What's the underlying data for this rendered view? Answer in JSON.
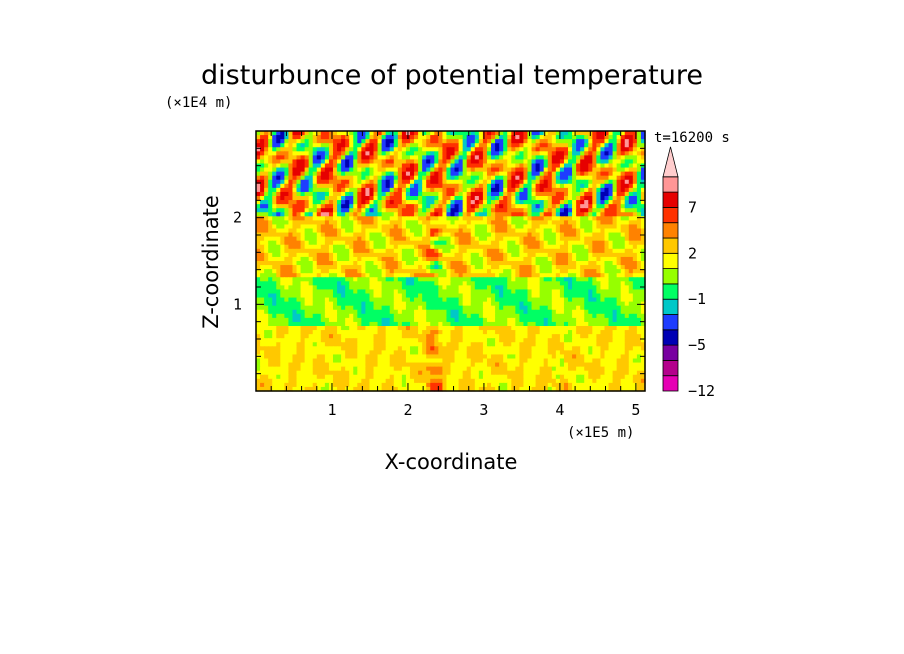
{
  "chart_data": {
    "type": "heatmap",
    "title": "disturbunce of potential temperature",
    "xlabel": "X-coordinate",
    "ylabel": "Z-coordinate",
    "x_scale_label": "(×1E5 m)",
    "y_scale_label": "(×1E4 m)",
    "time_label": "t=16200 s",
    "xlim": [
      0,
      5.12
    ],
    "ylim": [
      0,
      3.0
    ],
    "x_ticks": [
      "1",
      "2",
      "3",
      "4",
      "5"
    ],
    "x_tick_values": [
      1,
      2,
      3,
      4,
      5
    ],
    "y_ticks": [
      "1",
      "2"
    ],
    "y_tick_values": [
      1,
      2
    ],
    "colorbar": {
      "labels": [
        "7",
        "2",
        "−1",
        "−5",
        "−12"
      ],
      "levels": [
        -12,
        -9,
        -7,
        -5,
        -3,
        -2,
        -1,
        0,
        1,
        2,
        3,
        5,
        7,
        9
      ],
      "colors": [
        "#e600b4",
        "#b4008c",
        "#7800a0",
        "#0000b4",
        "#1e3cff",
        "#00c8c8",
        "#00ff64",
        "#96ff00",
        "#ffff00",
        "#ffc800",
        "#ff8200",
        "#ff3200",
        "#e60000",
        "#ff9696",
        "#ffcdcd"
      ],
      "extend": "max"
    }
  }
}
